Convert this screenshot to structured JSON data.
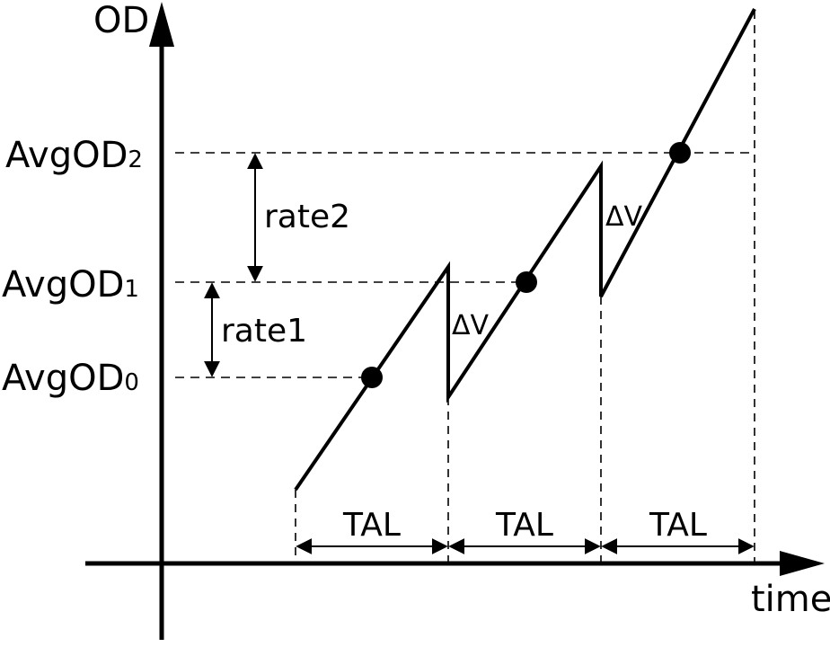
{
  "axes": {
    "y_label": "OD",
    "x_label": "time"
  },
  "levels": {
    "avg_od_2": {
      "base": "AvgOD",
      "sub": "2"
    },
    "avg_od_1": {
      "base": "AvgOD",
      "sub": "1"
    },
    "avg_od_0": {
      "base": "AvgOD",
      "sub": "0"
    }
  },
  "rates": {
    "rate2": "rate2",
    "rate1": "rate1"
  },
  "deltas": {
    "delta_1": "ΔV",
    "delta_2": "ΔV"
  },
  "intervals": {
    "tal_1": "TAL",
    "tal_2": "TAL",
    "tal_3": "TAL"
  },
  "colors": {
    "ink": "#000000",
    "background": "#ffffff"
  }
}
